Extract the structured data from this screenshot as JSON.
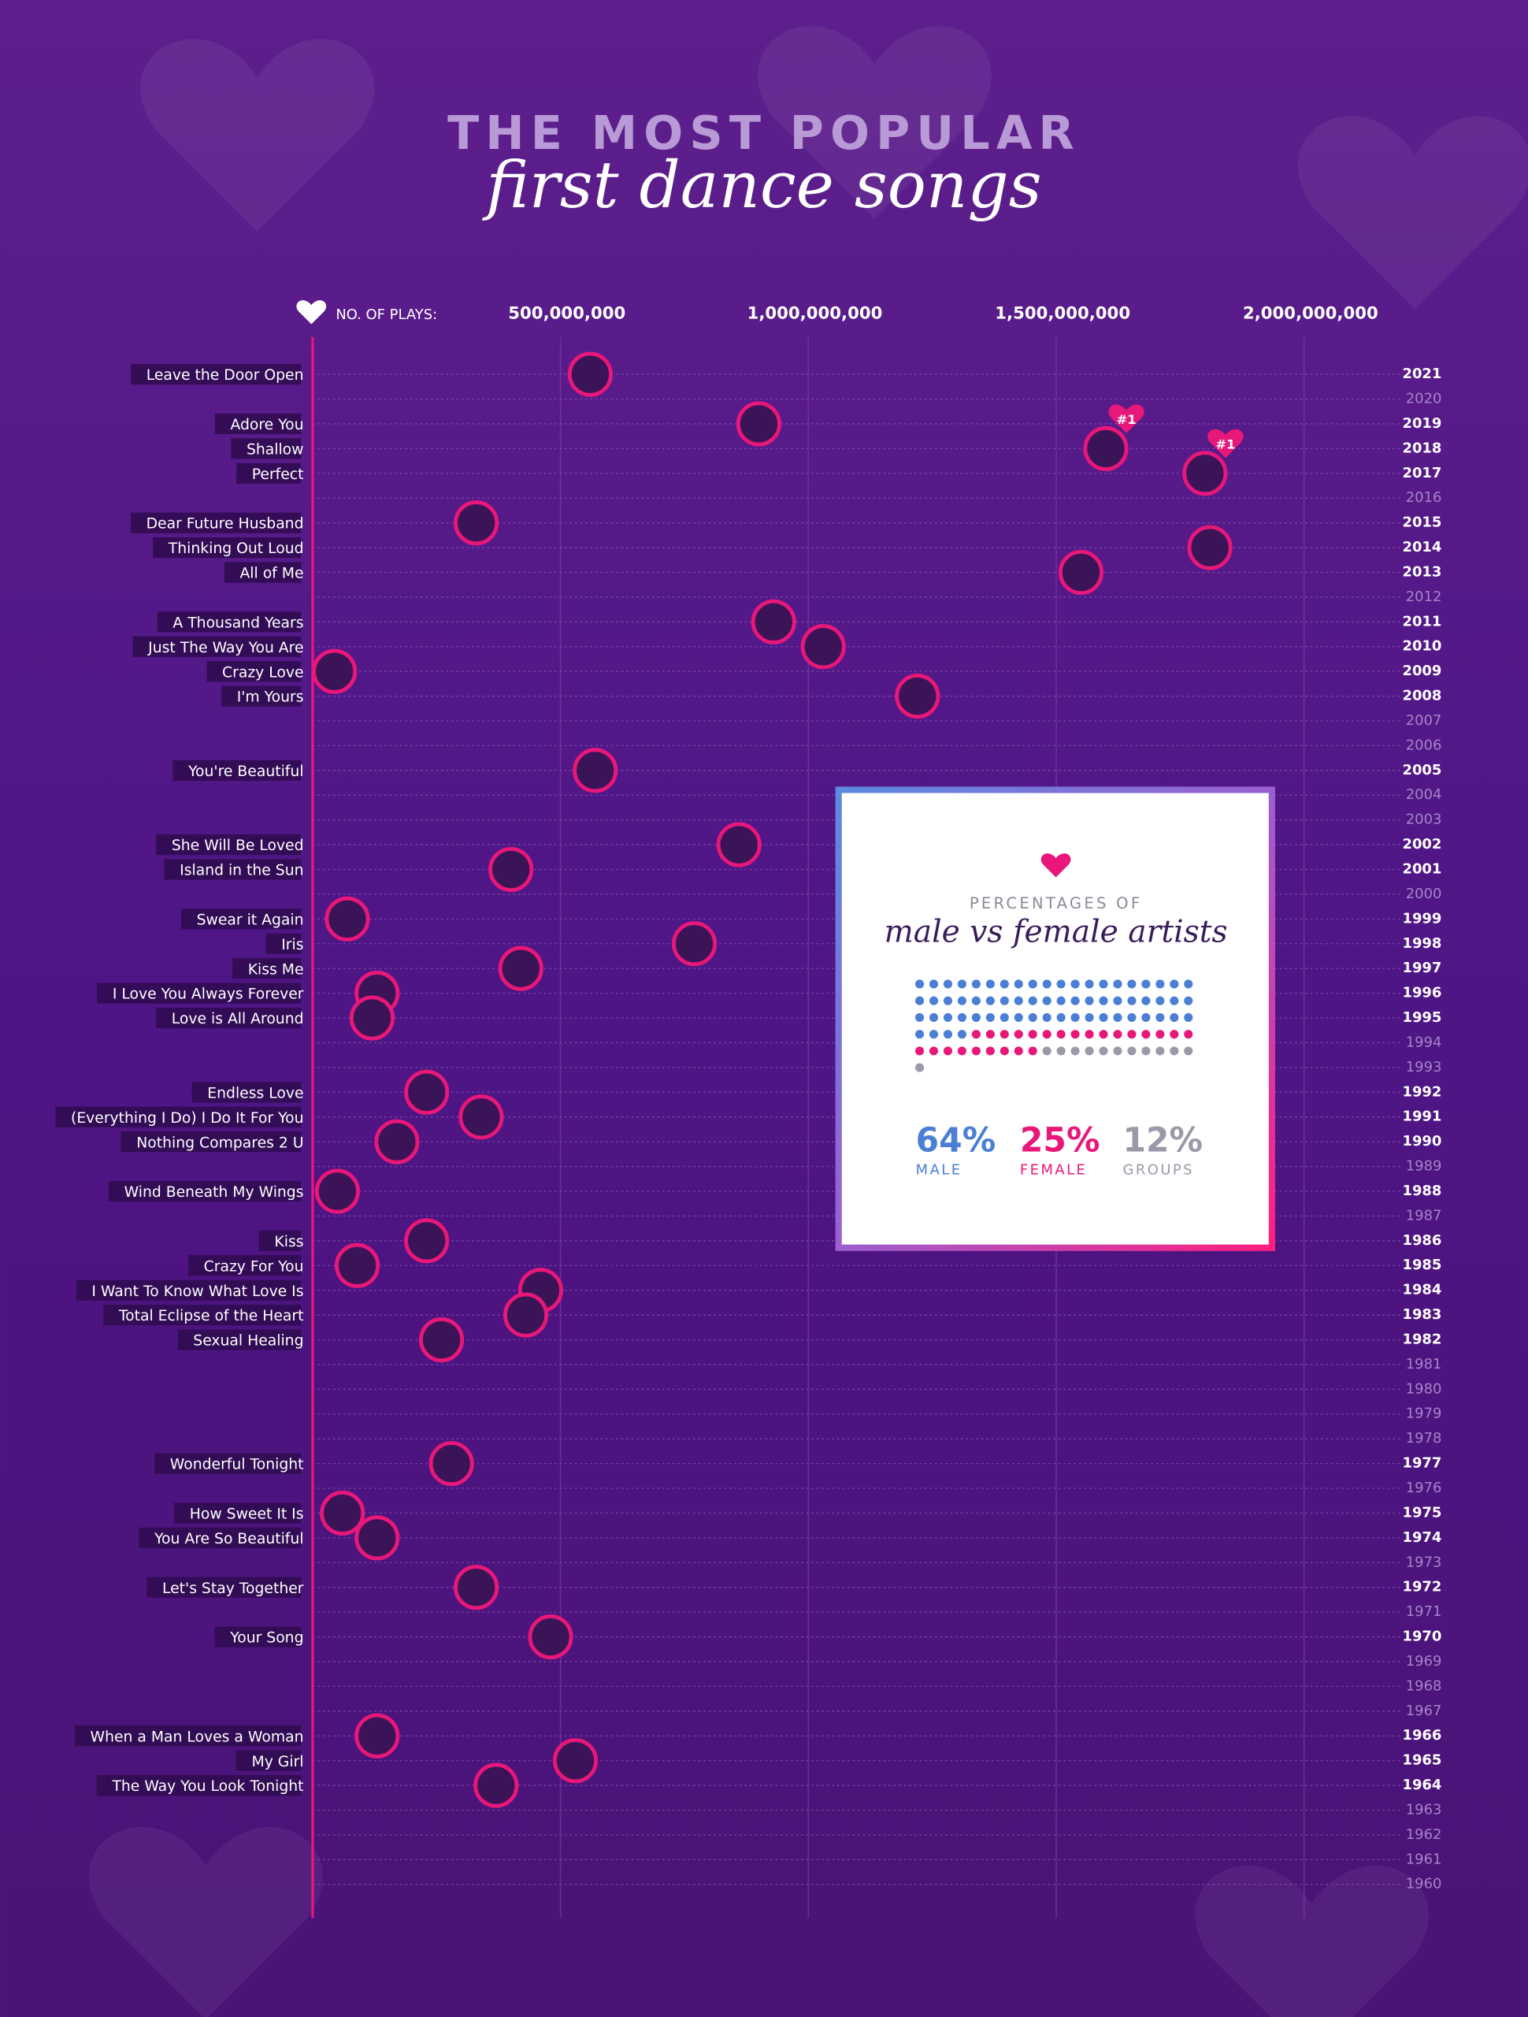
{
  "title": "THE MOST POPULAR",
  "subtitle": "first dance songs",
  "chart_data": [
    {
      "type": "lollipop",
      "x_label": "NO. OF PLAYS:",
      "color": "#e8177a",
      "xlim": [
        0,
        2000000000
      ],
      "xticks": [
        {
          "value": 500000000,
          "label": "500,000,000"
        },
        {
          "value": 1000000000,
          "label": "1,000,000,000"
        },
        {
          "value": 1500000000,
          "label": "1,500,000,000"
        },
        {
          "value": 2000000000,
          "label": "2,000,000,000"
        }
      ],
      "categories": [
        "2021",
        "2020",
        "2019",
        "2018",
        "2017",
        "2016",
        "2015",
        "2014",
        "2013",
        "2012",
        "2011",
        "2010",
        "2009",
        "2008",
        "2007",
        "2006",
        "2005",
        "2004",
        "2003",
        "2002",
        "2001",
        "2000",
        "1999",
        "1998",
        "1997",
        "1996",
        "1995",
        "1994",
        "1993",
        "1992",
        "1991",
        "1990",
        "1989",
        "1988",
        "1987",
        "1986",
        "1985",
        "1984",
        "1983",
        "1982",
        "1981",
        "1980",
        "1979",
        "1978",
        "1977",
        "1976",
        "1975",
        "1974",
        "1973",
        "1972",
        "1971",
        "1970",
        "1969",
        "1968",
        "1967",
        "1966",
        "1965",
        "1964",
        "1963",
        "1962",
        "1961",
        "1960"
      ],
      "labels": [
        "Leave the Door Open",
        null,
        "Adore You",
        "Shallow",
        "Perfect",
        null,
        "Dear Future Husband",
        "Thinking Out Loud",
        "All of Me",
        null,
        "A Thousand Years",
        "Just The Way You Are",
        "Crazy Love",
        "I'm Yours",
        null,
        null,
        "You're Beautiful",
        null,
        null,
        "She Will Be Loved",
        "Island in the Sun",
        null,
        "Swear it Again",
        "Iris",
        "Kiss Me",
        "I Love You Always Forever",
        "Love is All Around",
        null,
        null,
        "Endless Love",
        "(Everything I Do) I Do It For You",
        "Nothing Compares 2 U",
        null,
        "Wind Beneath My Wings",
        null,
        "Kiss",
        "Crazy For You",
        "I Want To Know What Love Is",
        "Total Eclipse of the Heart",
        "Sexual Healing",
        null,
        null,
        null,
        null,
        "Wonderful Tonight",
        null,
        "How Sweet It Is",
        "You Are So Beautiful",
        null,
        "Let's Stay Together",
        null,
        "Your Song",
        null,
        null,
        null,
        "When a Man Loves a Woman",
        "My Girl",
        "The Way You Look Tonight",
        null,
        null,
        null,
        null
      ],
      "values": [
        560000000,
        null,
        900000000,
        1600000000,
        1800000000,
        null,
        330000000,
        1810000000,
        1550000000,
        null,
        930000000,
        1030000000,
        44000000,
        1220000000,
        null,
        null,
        570000000,
        null,
        null,
        860000000,
        400000000,
        null,
        70000000,
        770000000,
        420000000,
        130000000,
        120000000,
        null,
        null,
        230000000,
        340000000,
        170000000,
        null,
        50000000,
        null,
        230000000,
        90000000,
        460000000,
        430000000,
        260000000,
        null,
        null,
        null,
        null,
        280000000,
        null,
        60000000,
        130000000,
        null,
        330000000,
        null,
        480000000,
        null,
        null,
        null,
        130000000,
        530000000,
        370000000,
        null,
        null,
        null,
        null
      ],
      "badges": [
        null,
        null,
        null,
        "#1",
        "#1",
        null,
        null,
        null,
        null,
        null,
        null,
        null,
        null,
        null,
        null,
        null,
        null,
        null,
        null,
        null,
        null,
        null,
        null,
        null,
        null,
        null,
        null,
        null,
        null,
        null,
        null,
        null,
        null,
        null,
        null,
        null,
        null,
        null,
        null,
        null,
        null,
        null,
        null,
        null,
        null,
        null,
        null,
        null,
        null,
        null,
        null,
        null,
        null,
        null,
        null,
        null,
        null,
        null,
        null,
        null,
        null,
        null
      ]
    },
    {
      "type": "waffle",
      "title": "PERCENTAGES OF",
      "subtitle": "male vs female artists",
      "categories": [
        "MALE",
        "FEMALE",
        "GROUPS"
      ],
      "values": [
        64,
        25,
        12
      ],
      "value_labels": [
        "64%",
        "25%",
        "12%"
      ],
      "colors": [
        "#4a7fd4",
        "#e8177a",
        "#9a99a8"
      ]
    }
  ]
}
